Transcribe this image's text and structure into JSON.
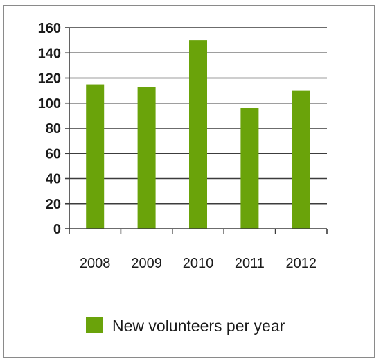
{
  "chart_data": {
    "type": "bar",
    "categories": [
      "2008",
      "2009",
      "2010",
      "2011",
      "2012"
    ],
    "series": [
      {
        "name": "New volunteers per year",
        "values": [
          115,
          113,
          150,
          96,
          110
        ],
        "color": "#6aa30a"
      }
    ],
    "title": "",
    "xlabel": "",
    "ylabel": "",
    "ylim": [
      0,
      160
    ],
    "yticks": [
      0,
      20,
      40,
      60,
      80,
      100,
      120,
      140,
      160
    ],
    "grid": true,
    "legend_position": "bottom"
  }
}
